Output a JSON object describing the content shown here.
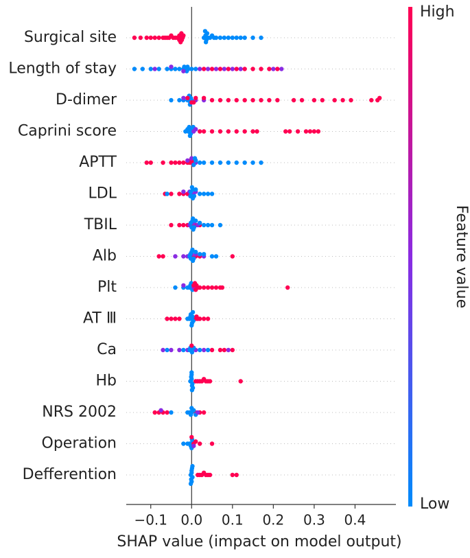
{
  "chart_data": {
    "type": "beeswarm",
    "xlabel": "SHAP value (impact on model output)",
    "xlim": [
      -0.16,
      0.5
    ],
    "xticks": [
      {
        "value": -0.1,
        "label": "−0.1"
      },
      {
        "value": 0,
        "label": "0.0"
      },
      0.1,
      0.2,
      0.3,
      0.4
    ],
    "colorbar": {
      "label": "Feature value",
      "high": "High",
      "low": "Low",
      "colors": [
        "#ff0052",
        "#8a2be2",
        "#008bfb"
      ]
    },
    "features": [
      {
        "name": "Surgical site",
        "groups": [
          {
            "color": "#ff0052",
            "values": [
              -0.14,
              -0.125,
              -0.11,
              -0.1,
              -0.09,
              -0.08,
              -0.07,
              -0.065,
              -0.06,
              -0.055,
              -0.05,
              -0.045,
              -0.04,
              -0.035,
              -0.03,
              -0.028,
              -0.026,
              -0.024,
              -0.022,
              -0.02,
              -0.025,
              -0.03,
              -0.027
            ]
          },
          {
            "color": "#008bfb",
            "values": [
              0.03,
              0.032,
              0.034,
              0.036,
              0.038,
              0.04,
              0.045,
              0.05,
              0.055,
              0.06,
              0.07,
              0.08,
              0.09,
              0.1,
              0.11,
              0.12,
              0.13,
              0.15,
              0.17,
              0.035,
              0.033
            ]
          }
        ]
      },
      {
        "name": "Length of stay",
        "groups": [
          {
            "color": "#008bfb",
            "values": [
              -0.14,
              -0.12,
              -0.1,
              -0.08,
              -0.06,
              -0.05,
              -0.04,
              -0.03,
              -0.02,
              -0.015,
              -0.01,
              -0.012,
              -0.018,
              -0.008,
              0.0,
              0.01
            ]
          },
          {
            "color": "#8a2be2",
            "values": [
              -0.09,
              -0.05,
              -0.02,
              0.02,
              0.04,
              0.06,
              0.08,
              0.1,
              0.12,
              0.2,
              0.22
            ]
          },
          {
            "color": "#ff0052",
            "values": [
              0.03,
              0.05,
              0.07,
              0.09,
              0.11,
              0.13,
              0.15,
              0.17,
              0.19,
              0.21
            ]
          }
        ]
      },
      {
        "name": "D-dimer",
        "groups": [
          {
            "color": "#008bfb",
            "values": [
              -0.05,
              -0.03,
              -0.02,
              -0.01,
              -0.008,
              -0.005,
              -0.003,
              0.0,
              -0.006,
              -0.004,
              -0.002
            ]
          },
          {
            "color": "#8a2be2",
            "values": [
              -0.02,
              0.01,
              0.03
            ]
          },
          {
            "color": "#ff0052",
            "values": [
              0.01,
              0.03,
              0.05,
              0.07,
              0.09,
              0.11,
              0.13,
              0.15,
              0.17,
              0.19,
              0.21,
              0.25,
              0.27,
              0.3,
              0.32,
              0.35,
              0.37,
              0.39,
              0.44,
              0.455,
              0.46,
              0.005,
              0.0,
              -0.01
            ]
          }
        ]
      },
      {
        "name": "Caprini score",
        "groups": [
          {
            "color": "#008bfb",
            "values": [
              -0.015,
              -0.01,
              -0.008,
              -0.005,
              -0.003,
              0,
              0.002,
              -0.006,
              -0.004,
              -0.002,
              0.004
            ]
          },
          {
            "color": "#8a2be2",
            "values": [
              0.005,
              0.01
            ]
          },
          {
            "color": "#ff0052",
            "values": [
              0.02,
              0.03,
              0.05,
              0.07,
              0.09,
              0.11,
              0.13,
              0.15,
              0.16,
              0.23,
              0.24,
              0.26,
              0.28,
              0.29,
              0.3,
              0.31
            ]
          }
        ]
      },
      {
        "name": "APTT",
        "groups": [
          {
            "color": "#ff0052",
            "values": [
              -0.11,
              -0.1,
              -0.07,
              -0.05,
              -0.04,
              -0.03,
              -0.02,
              -0.01,
              -0.005,
              -0.003,
              0,
              0.002,
              0.004
            ]
          },
          {
            "color": "#8a2be2",
            "values": [
              -0.01,
              0.0,
              0.01
            ]
          },
          {
            "color": "#008bfb",
            "values": [
              0.01,
              0.02,
              0.03,
              0.05,
              0.07,
              0.09,
              0.11,
              0.13,
              0.15,
              0.17,
              0.005,
              0.008
            ]
          }
        ]
      },
      {
        "name": "LDL",
        "groups": [
          {
            "color": "#ff0052",
            "values": [
              -0.065,
              -0.05,
              -0.03,
              -0.02,
              -0.01,
              -0.005
            ]
          },
          {
            "color": "#8a2be2",
            "values": [
              -0.02,
              -0.005,
              0,
              0.005,
              0.01
            ]
          },
          {
            "color": "#008bfb",
            "values": [
              -0.06,
              -0.002,
              0,
              0.003,
              0.006,
              0.01,
              0.02,
              0.03,
              0.04,
              0.05,
              0.003,
              -0.003,
              0.001
            ]
          }
        ]
      },
      {
        "name": "TBIL",
        "groups": [
          {
            "color": "#ff0052",
            "values": [
              -0.05,
              -0.03,
              -0.02,
              -0.01,
              0.0,
              0.01,
              0.02
            ]
          },
          {
            "color": "#8a2be2",
            "values": [
              -0.005,
              0.005,
              0.015
            ]
          },
          {
            "color": "#008bfb",
            "values": [
              -0.002,
              0,
              0.002,
              0.004,
              0.006,
              0.01,
              0.02,
              0.03,
              0.04,
              0.05,
              0.07,
              0.003
            ]
          }
        ]
      },
      {
        "name": "Alb",
        "groups": [
          {
            "color": "#ff0052",
            "values": [
              -0.08,
              -0.07,
              0.0,
              0.01,
              0.02,
              0.1
            ]
          },
          {
            "color": "#8a2be2",
            "values": [
              -0.04,
              -0.02,
              -0.01,
              0,
              0.01,
              0.03
            ]
          },
          {
            "color": "#008bfb",
            "values": [
              -0.005,
              -0.002,
              0,
              0.003,
              0.005,
              0.01,
              0.02,
              0.03,
              0.05,
              0.06,
              0.002,
              -0.003
            ]
          }
        ]
      },
      {
        "name": "Plt",
        "groups": [
          {
            "color": "#008bfb",
            "values": [
              -0.04,
              -0.02,
              -0.01,
              -0.005,
              -0.002,
              0,
              0.002,
              -0.003,
              -0.001
            ]
          },
          {
            "color": "#8a2be2",
            "values": [
              -0.02,
              0.005
            ]
          },
          {
            "color": "#ff0052",
            "values": [
              0.005,
              0.01,
              0.015,
              0.02,
              0.03,
              0.04,
              0.05,
              0.06,
              0.07,
              0.075,
              0.235,
              0.008,
              0.012
            ]
          }
        ]
      },
      {
        "name": "AT Ⅲ",
        "groups": [
          {
            "color": "#ff0052",
            "values": [
              -0.06,
              -0.05,
              -0.04,
              -0.03,
              0.01,
              0.015,
              0.02,
              0.03,
              0.04,
              0.012
            ]
          },
          {
            "color": "#008bfb",
            "values": [
              -0.01,
              -0.005,
              -0.003,
              0,
              0.002,
              0.004,
              -0.002,
              0.001,
              0.003,
              0.0
            ]
          }
        ]
      },
      {
        "name": "Ca",
        "groups": [
          {
            "color": "#8a2be2",
            "values": [
              -0.07,
              -0.05,
              -0.03,
              -0.01,
              0.01,
              0.03,
              0.09
            ]
          },
          {
            "color": "#008bfb",
            "values": [
              -0.06,
              -0.02,
              -0.005,
              0,
              0.005,
              0.02,
              0.04,
              0.003,
              -0.003,
              0.001
            ]
          },
          {
            "color": "#ff0052",
            "values": [
              0.05,
              0.07,
              0.08,
              0.1,
              0.0
            ]
          }
        ]
      },
      {
        "name": "Hb",
        "groups": [
          {
            "color": "#008bfb",
            "values": [
              -0.002,
              0,
              0.002,
              -0.001,
              0.001,
              0.0,
              0.003,
              -0.003,
              0.0,
              0.001
            ]
          },
          {
            "color": "#ff0052",
            "values": [
              0.01,
              0.015,
              0.02,
              0.025,
              0.03,
              0.035,
              0.04,
              0.045,
              0.12
            ]
          }
        ]
      },
      {
        "name": "NRS 2002",
        "groups": [
          {
            "color": "#ff0052",
            "values": [
              -0.09,
              -0.08,
              -0.07,
              -0.06,
              0.01,
              0.02,
              0.03
            ]
          },
          {
            "color": "#008bfb",
            "values": [
              -0.05,
              -0.01,
              -0.005,
              0,
              0.005,
              0.01,
              0.002,
              -0.002,
              0.0
            ]
          },
          {
            "color": "#8a2be2",
            "values": [
              -0.075,
              0.015
            ]
          }
        ]
      },
      {
        "name": "Operation",
        "groups": [
          {
            "color": "#008bfb",
            "values": [
              -0.02,
              -0.01,
              -0.005,
              0,
              0.002,
              -0.002,
              0.001,
              0.0
            ]
          },
          {
            "color": "#ff0052",
            "values": [
              0.0,
              0.005,
              0.01,
              0.02,
              0.05
            ]
          },
          {
            "color": "#8a2be2",
            "values": [
              0.005
            ]
          }
        ]
      },
      {
        "name": "Defferention",
        "groups": [
          {
            "color": "#008bfb",
            "values": [
              -0.002,
              0,
              0.002,
              0.0,
              -0.001,
              0.001,
              0.0,
              0.002,
              -0.002
            ]
          },
          {
            "color": "#ff0052",
            "values": [
              0.015,
              0.02,
              0.025,
              0.03,
              0.035,
              0.04,
              0.045,
              0.1,
              0.11
            ]
          }
        ]
      }
    ]
  }
}
